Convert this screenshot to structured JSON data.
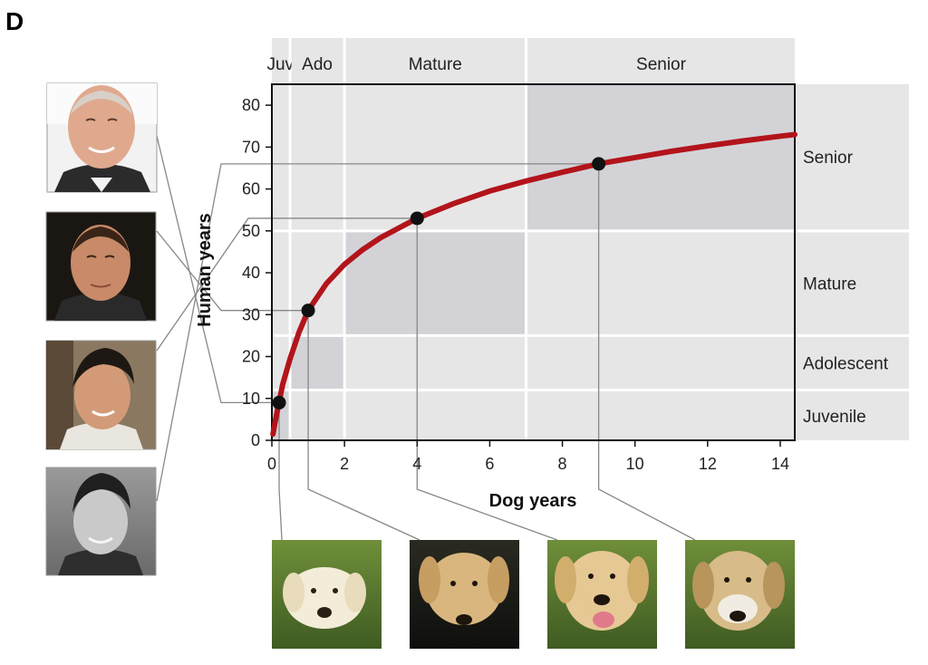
{
  "panel_label": "D",
  "colors": {
    "curve": "#b3141b",
    "band": "#e6e6e7",
    "zone": "#d3d3d7",
    "guide": "#888888",
    "point": "#111111"
  },
  "chart_data": {
    "type": "line",
    "title": "",
    "xlabel": "Dog years",
    "ylabel": "Human years",
    "xlim": [
      0,
      14.4
    ],
    "ylim": [
      0,
      85
    ],
    "x_ticks": [
      0,
      2,
      4,
      6,
      8,
      10,
      12,
      14
    ],
    "y_ticks": [
      0,
      10,
      20,
      30,
      40,
      50,
      60,
      70,
      80
    ],
    "grid": false,
    "series": [
      {
        "x": [
          0.03,
          0.1,
          0.2,
          0.3,
          0.5,
          0.75,
          1,
          1.5,
          2,
          2.5,
          3,
          4,
          5,
          6,
          7,
          8,
          9,
          10,
          11,
          12,
          13,
          14,
          14.4
        ],
        "y": [
          1.5,
          4.8,
          9.2,
          13.4,
          19.4,
          25.9,
          31,
          37.4,
          42,
          45.5,
          48.4,
          53,
          56.5,
          59.5,
          61.9,
          64,
          66,
          67.5,
          69,
          70.3,
          71.5,
          72.6,
          73
        ]
      }
    ],
    "highlighted_points": [
      {
        "x": 0.2,
        "y": 9
      },
      {
        "x": 1,
        "y": 31
      },
      {
        "x": 4,
        "y": 53
      },
      {
        "x": 9,
        "y": 66
      }
    ],
    "dog_stages": [
      {
        "label": "Juv",
        "from": 0,
        "to": 0.5
      },
      {
        "label": "Ado",
        "from": 0.5,
        "to": 2
      },
      {
        "label": "Mature",
        "from": 2,
        "to": 7
      },
      {
        "label": "Senior",
        "from": 7,
        "to": 14.4
      }
    ],
    "human_stages": [
      {
        "label": "Juvenile",
        "from": 0,
        "to": 12
      },
      {
        "label": "Adolescent",
        "from": 12,
        "to": 25
      },
      {
        "label": "Mature",
        "from": 25,
        "to": 50
      },
      {
        "label": "Senior",
        "from": 50,
        "to": 85
      }
    ]
  },
  "photos": {
    "human": [
      {
        "icon": "older-man-photo"
      },
      {
        "icon": "adult-man-photo"
      },
      {
        "icon": "teen-boy-photo"
      },
      {
        "icon": "child-photo"
      }
    ],
    "dog": [
      {
        "icon": "puppy-photo"
      },
      {
        "icon": "adolescent-dog-photo"
      },
      {
        "icon": "adult-dog-photo"
      },
      {
        "icon": "senior-dog-photo"
      }
    ]
  }
}
